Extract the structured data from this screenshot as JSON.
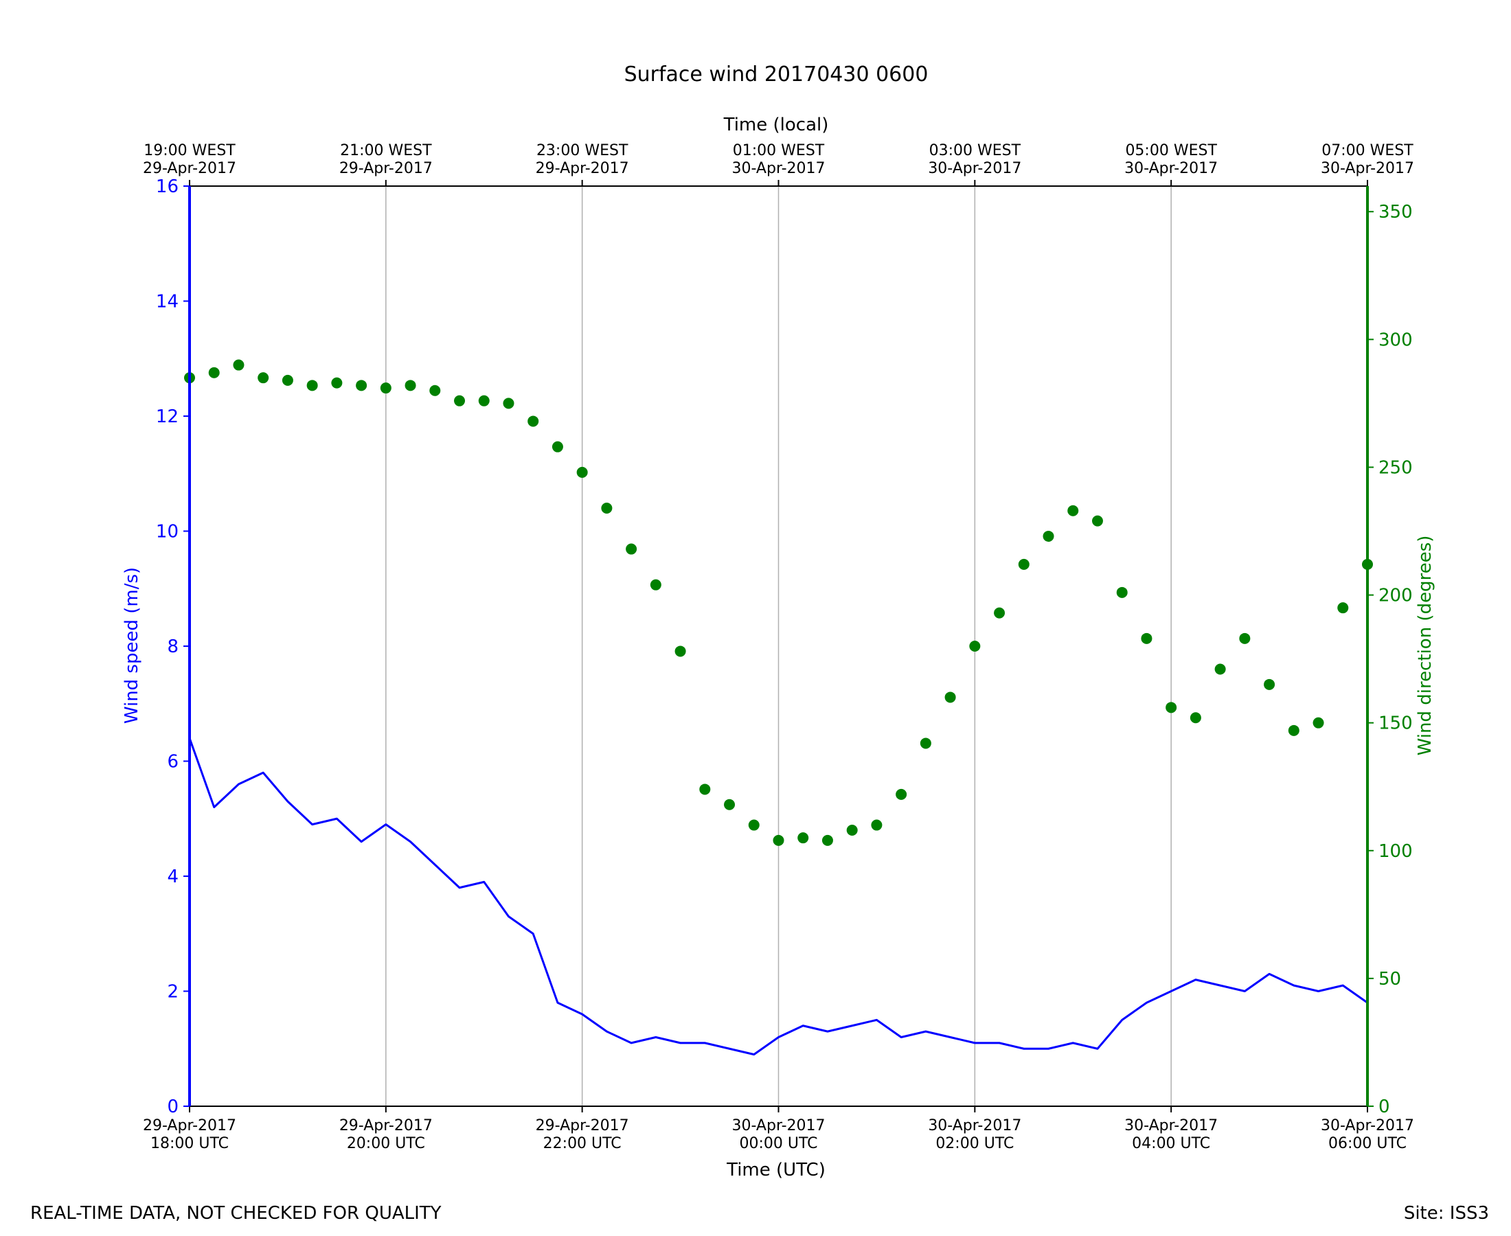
{
  "chart_data": {
    "type": "line",
    "title": "Surface wind 20170430 0600",
    "top_axis_label": "Time (local)",
    "xlabel": "Time (UTC)",
    "ylabel_left": "Wind speed (m/s)",
    "ylabel_right": "Wind direction (degrees)",
    "xlim_hours": [
      0,
      12
    ],
    "ylim_left": [
      0,
      16
    ],
    "ylim_right": [
      0,
      360
    ],
    "grid": "vertical at each bottom tick",
    "bottom_ticks": [
      {
        "date": "29-Apr-2017",
        "time": "18:00 UTC"
      },
      {
        "date": "29-Apr-2017",
        "time": "20:00 UTC"
      },
      {
        "date": "29-Apr-2017",
        "time": "22:00 UTC"
      },
      {
        "date": "30-Apr-2017",
        "time": "00:00 UTC"
      },
      {
        "date": "30-Apr-2017",
        "time": "02:00 UTC"
      },
      {
        "date": "30-Apr-2017",
        "time": "04:00 UTC"
      },
      {
        "date": "30-Apr-2017",
        "time": "06:00 UTC"
      }
    ],
    "top_ticks": [
      {
        "time": "19:00 WEST",
        "date": "29-Apr-2017"
      },
      {
        "time": "21:00 WEST",
        "date": "29-Apr-2017"
      },
      {
        "time": "23:00 WEST",
        "date": "29-Apr-2017"
      },
      {
        "time": "01:00 WEST",
        "date": "30-Apr-2017"
      },
      {
        "time": "03:00 WEST",
        "date": "30-Apr-2017"
      },
      {
        "time": "05:00 WEST",
        "date": "30-Apr-2017"
      },
      {
        "time": "07:00 WEST",
        "date": "30-Apr-2017"
      }
    ],
    "left_ticks": [
      "0",
      "2",
      "4",
      "6",
      "8",
      "10",
      "12",
      "14",
      "16"
    ],
    "right_ticks": [
      "0",
      "50",
      "100",
      "150",
      "200",
      "250",
      "300",
      "350"
    ],
    "series": [
      {
        "name": "Wind speed (m/s)",
        "kind": "line",
        "axis": "left",
        "color": "#0000ff",
        "x_hours": [
          0.0,
          0.25,
          0.5,
          0.75,
          1.0,
          1.25,
          1.5,
          1.75,
          2.0,
          2.25,
          2.5,
          2.75,
          3.0,
          3.25,
          3.5,
          3.75,
          4.0,
          4.25,
          4.5,
          4.75,
          5.0,
          5.25,
          5.5,
          5.75,
          6.0,
          6.25,
          6.5,
          6.75,
          7.0,
          7.25,
          7.5,
          7.75,
          8.0,
          8.25,
          8.5,
          8.75,
          9.0,
          9.25,
          9.5,
          9.75,
          10.0,
          10.25,
          10.5,
          10.75,
          11.0,
          11.25,
          11.5,
          11.75,
          12.0
        ],
        "values": [
          6.4,
          5.2,
          5.6,
          5.8,
          5.3,
          4.9,
          5.0,
          4.6,
          4.9,
          4.6,
          4.2,
          3.8,
          3.9,
          3.3,
          3.0,
          1.8,
          1.6,
          1.3,
          1.1,
          1.2,
          1.1,
          1.1,
          1.0,
          0.9,
          1.2,
          1.4,
          1.3,
          1.4,
          1.5,
          1.2,
          1.3,
          1.2,
          1.1,
          1.1,
          1.0,
          1.0,
          1.1,
          1.0,
          1.5,
          1.8,
          2.0,
          2.2,
          2.1,
          2.0,
          2.3,
          2.1,
          2.0,
          2.1,
          1.8
        ]
      },
      {
        "name": "Wind direction (degrees)",
        "kind": "scatter",
        "axis": "right",
        "color": "#008000",
        "x_hours": [
          0.0,
          0.25,
          0.5,
          0.75,
          1.0,
          1.25,
          1.5,
          1.75,
          2.0,
          2.25,
          2.5,
          2.75,
          3.0,
          3.25,
          3.5,
          3.75,
          4.0,
          4.25,
          4.5,
          4.75,
          5.0,
          5.25,
          5.5,
          5.75,
          6.0,
          6.25,
          6.5,
          6.75,
          7.0,
          7.25,
          7.5,
          7.75,
          8.0,
          8.25,
          8.5,
          8.75,
          9.0,
          9.25,
          9.5,
          9.75,
          10.0,
          10.25,
          10.5,
          10.75,
          11.0,
          11.25,
          11.5,
          11.75,
          12.0
        ],
        "values": [
          285,
          287,
          290,
          285,
          284,
          282,
          283,
          282,
          281,
          282,
          280,
          276,
          276,
          275,
          268,
          258,
          248,
          234,
          218,
          204,
          178,
          124,
          118,
          110,
          104,
          105,
          104,
          108,
          110,
          122,
          142,
          160,
          180,
          193,
          212,
          223,
          233,
          229,
          201,
          183,
          156,
          152,
          171,
          183,
          165,
          147,
          150,
          195,
          212
        ]
      }
    ],
    "footer_left": "REAL-TIME DATA, NOT CHECKED FOR QUALITY",
    "footer_right": "Site: ISS3"
  }
}
